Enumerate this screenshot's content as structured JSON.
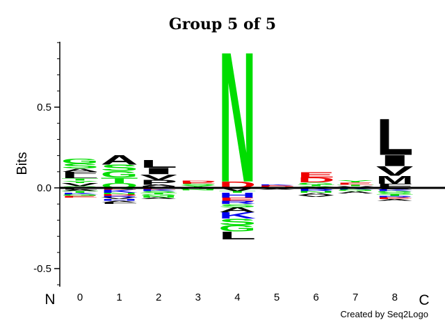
{
  "chart_data": {
    "type": "sequence-logo",
    "title": "Group 5 of 5",
    "ylabel": "Bits",
    "ylim": [
      -0.6,
      0.9
    ],
    "yticks": [
      "0.5",
      "0.0",
      "-0.5"
    ],
    "ytick_values": [
      0.5,
      0.0,
      -0.5
    ],
    "positions": [
      "0",
      "1",
      "2",
      "3",
      "4",
      "5",
      "6",
      "7",
      "8"
    ],
    "n_label": "N",
    "c_label": "C",
    "credit": "Created by Seq2Logo",
    "colors": {
      "hydrophobic": "#000000",
      "polar": "#00dd00",
      "acidic": "#ee0000",
      "basic": "#0000ee",
      "special": "#cc44cc"
    },
    "stacks": [
      {
        "position": "0",
        "up": [
          [
            "Q",
            0.01
          ],
          [
            "V",
            0.02
          ],
          [
            "Y",
            0.015
          ],
          [
            "T",
            0.015
          ],
          [
            "L",
            0.02
          ],
          [
            "F",
            0.02
          ],
          [
            "A",
            0.02
          ],
          [
            "S",
            0.03
          ],
          [
            "G",
            0.03
          ]
        ],
        "down": [
          [
            "L",
            0.01
          ],
          [
            "A",
            0.01
          ],
          [
            "T",
            0.01
          ],
          [
            "K",
            0.01
          ],
          [
            "G",
            0.01
          ],
          [
            "E",
            0.01
          ]
        ]
      },
      {
        "position": "1",
        "up": [
          [
            "Q",
            0.03
          ],
          [
            "T",
            0.035
          ],
          [
            "G",
            0.04
          ],
          [
            "S",
            0.04
          ],
          [
            "A",
            0.06
          ]
        ],
        "down": [
          [
            "E",
            0.01
          ],
          [
            "K",
            0.02
          ],
          [
            "N",
            0.01
          ],
          [
            "D",
            0.01
          ],
          [
            "R",
            0.01
          ],
          [
            "V",
            0.01
          ],
          [
            "H",
            0.01
          ],
          [
            "A",
            0.01
          ],
          [
            "L",
            0.01
          ]
        ]
      },
      {
        "position": "2",
        "up": [
          [
            "M",
            0.01
          ],
          [
            "A",
            0.01
          ],
          [
            "P",
            0.03
          ],
          [
            "V",
            0.035
          ],
          [
            "I",
            0.04
          ],
          [
            "L",
            0.05
          ]
        ],
        "down": [
          [
            "E",
            0.01
          ],
          [
            "K",
            0.01
          ],
          [
            "S",
            0.01
          ],
          [
            "T",
            0.01
          ],
          [
            "G",
            0.01
          ],
          [
            "N",
            0.01
          ],
          [
            "A",
            0.01
          ]
        ]
      },
      {
        "position": "3",
        "up": [
          [
            "L",
            0.005
          ],
          [
            "Y",
            0.01
          ],
          [
            "S",
            0.01
          ],
          [
            "E",
            0.01
          ],
          [
            "D",
            0.01
          ]
        ],
        "down": [
          [
            "K",
            0.005
          ],
          [
            "G",
            0.005
          ],
          [
            "N",
            0.005
          ]
        ]
      },
      {
        "position": "4",
        "up": [
          [
            "D",
            0.04
          ],
          [
            "N",
            0.83
          ]
        ],
        "down": [
          [
            "V",
            0.02
          ],
          [
            "T",
            0.01
          ],
          [
            "H",
            0.03
          ],
          [
            "E",
            0.02
          ],
          [
            "R",
            0.02
          ],
          [
            "S",
            0.02
          ],
          [
            "A",
            0.03
          ],
          [
            "K",
            0.04
          ],
          [
            "S",
            0.04
          ],
          [
            "G",
            0.04
          ],
          [
            "L",
            0.05
          ]
        ]
      },
      {
        "position": "5",
        "up": [
          [
            "G",
            0.005
          ],
          [
            "D",
            0.005
          ],
          [
            "E",
            0.005
          ],
          [
            "K",
            0.005
          ]
        ],
        "down": [
          [
            "L",
            0.005
          ],
          [
            "A",
            0.005
          ]
        ]
      },
      {
        "position": "6",
        "up": [
          [
            "Y",
            0.01
          ],
          [
            "T",
            0.01
          ],
          [
            "G",
            0.015
          ],
          [
            "D",
            0.03
          ],
          [
            "E",
            0.035
          ]
        ],
        "down": [
          [
            "K",
            0.01
          ],
          [
            "R",
            0.01
          ],
          [
            "N",
            0.01
          ],
          [
            "A",
            0.015
          ],
          [
            "V",
            0.01
          ]
        ]
      },
      {
        "position": "7",
        "up": [
          [
            "V",
            0.01
          ],
          [
            "T",
            0.01
          ],
          [
            "E",
            0.015
          ],
          [
            "Y",
            0.015
          ]
        ],
        "down": [
          [
            "K",
            0.01
          ],
          [
            "G",
            0.01
          ],
          [
            "A",
            0.015
          ]
        ]
      },
      {
        "position": "8",
        "up": [
          [
            "F",
            0.025
          ],
          [
            "M",
            0.05
          ],
          [
            "V",
            0.06
          ],
          [
            "I",
            0.07
          ],
          [
            "L",
            0.23
          ]
        ],
        "down": [
          [
            "A",
            0.01
          ],
          [
            "K",
            0.01
          ],
          [
            "G",
            0.01
          ],
          [
            "S",
            0.01
          ],
          [
            "T",
            0.01
          ],
          [
            "R",
            0.01
          ],
          [
            "E",
            0.01
          ],
          [
            "A",
            0.01
          ]
        ]
      }
    ]
  }
}
